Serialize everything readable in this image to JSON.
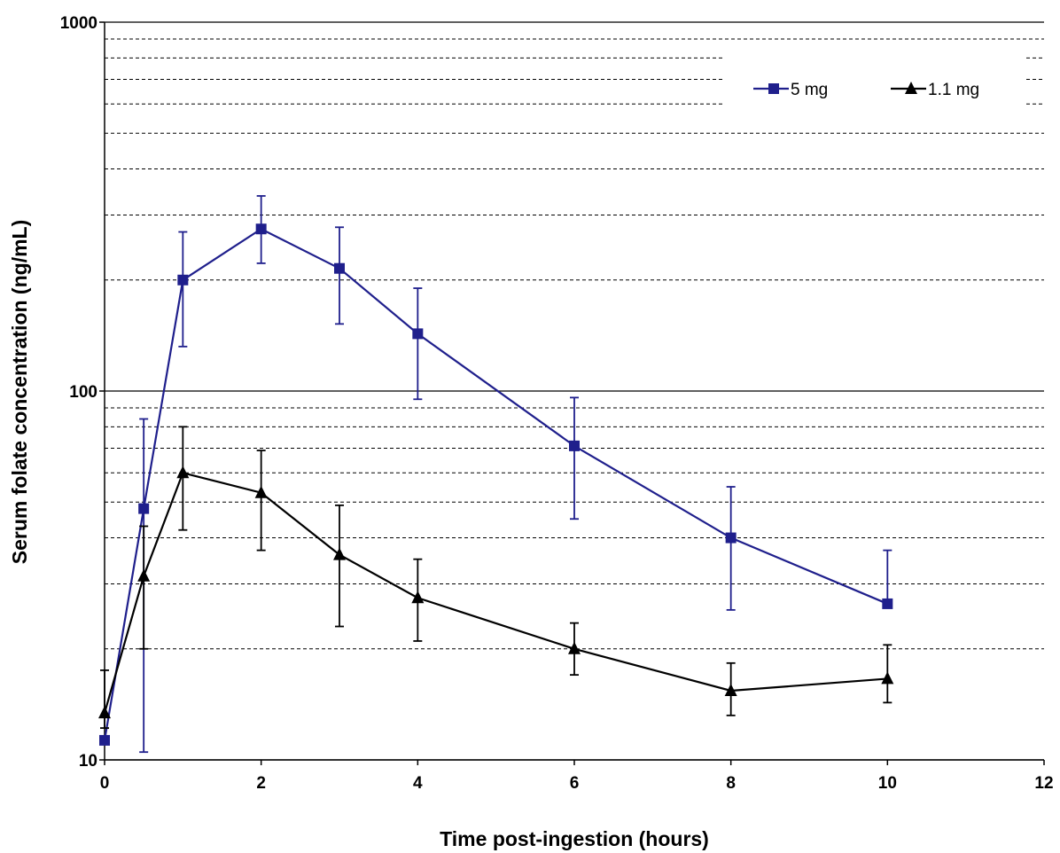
{
  "chart_data": {
    "type": "line",
    "title": "",
    "xlabel": "Time post-ingestion (hours)",
    "ylabel": "Serum folate concentration (ng/mL)",
    "xlim": [
      0,
      12
    ],
    "ylim": [
      10,
      1000
    ],
    "y_scale": "log",
    "x_ticks": [
      "0",
      "2",
      "4",
      "6",
      "8",
      "10",
      "12"
    ],
    "y_ticks": [
      "10",
      "100",
      "1000"
    ],
    "grid": "horizontal: solid at decades, dashed at minor ticks",
    "legend_position": "top-right",
    "series": [
      {
        "name": "5 mg",
        "color": "#1f1f8c",
        "marker": "square",
        "x": [
          0,
          0.5,
          1,
          2,
          3,
          4,
          6,
          8,
          10
        ],
        "y": [
          11.3,
          48,
          200,
          275,
          215,
          143,
          71,
          40,
          26.5
        ],
        "error_low": [
          null,
          10.5,
          132,
          222,
          152,
          95,
          45,
          25.5,
          null
        ],
        "error_high": [
          null,
          84,
          270,
          338,
          278,
          190,
          96,
          55,
          37
        ]
      },
      {
        "name": "1.1 mg",
        "color": "#000000",
        "marker": "triangle",
        "x": [
          0,
          0.5,
          1,
          2,
          3,
          4,
          6,
          8,
          10
        ],
        "y": [
          13.4,
          31.5,
          60,
          53,
          36,
          27.5,
          20,
          15.4,
          16.6
        ],
        "error_low": [
          12.2,
          20,
          42,
          37,
          23,
          21,
          17,
          13.2,
          14.3
        ],
        "error_high": [
          17.5,
          43,
          80,
          69,
          49,
          35,
          23.5,
          18.3,
          20.5
        ]
      }
    ]
  }
}
